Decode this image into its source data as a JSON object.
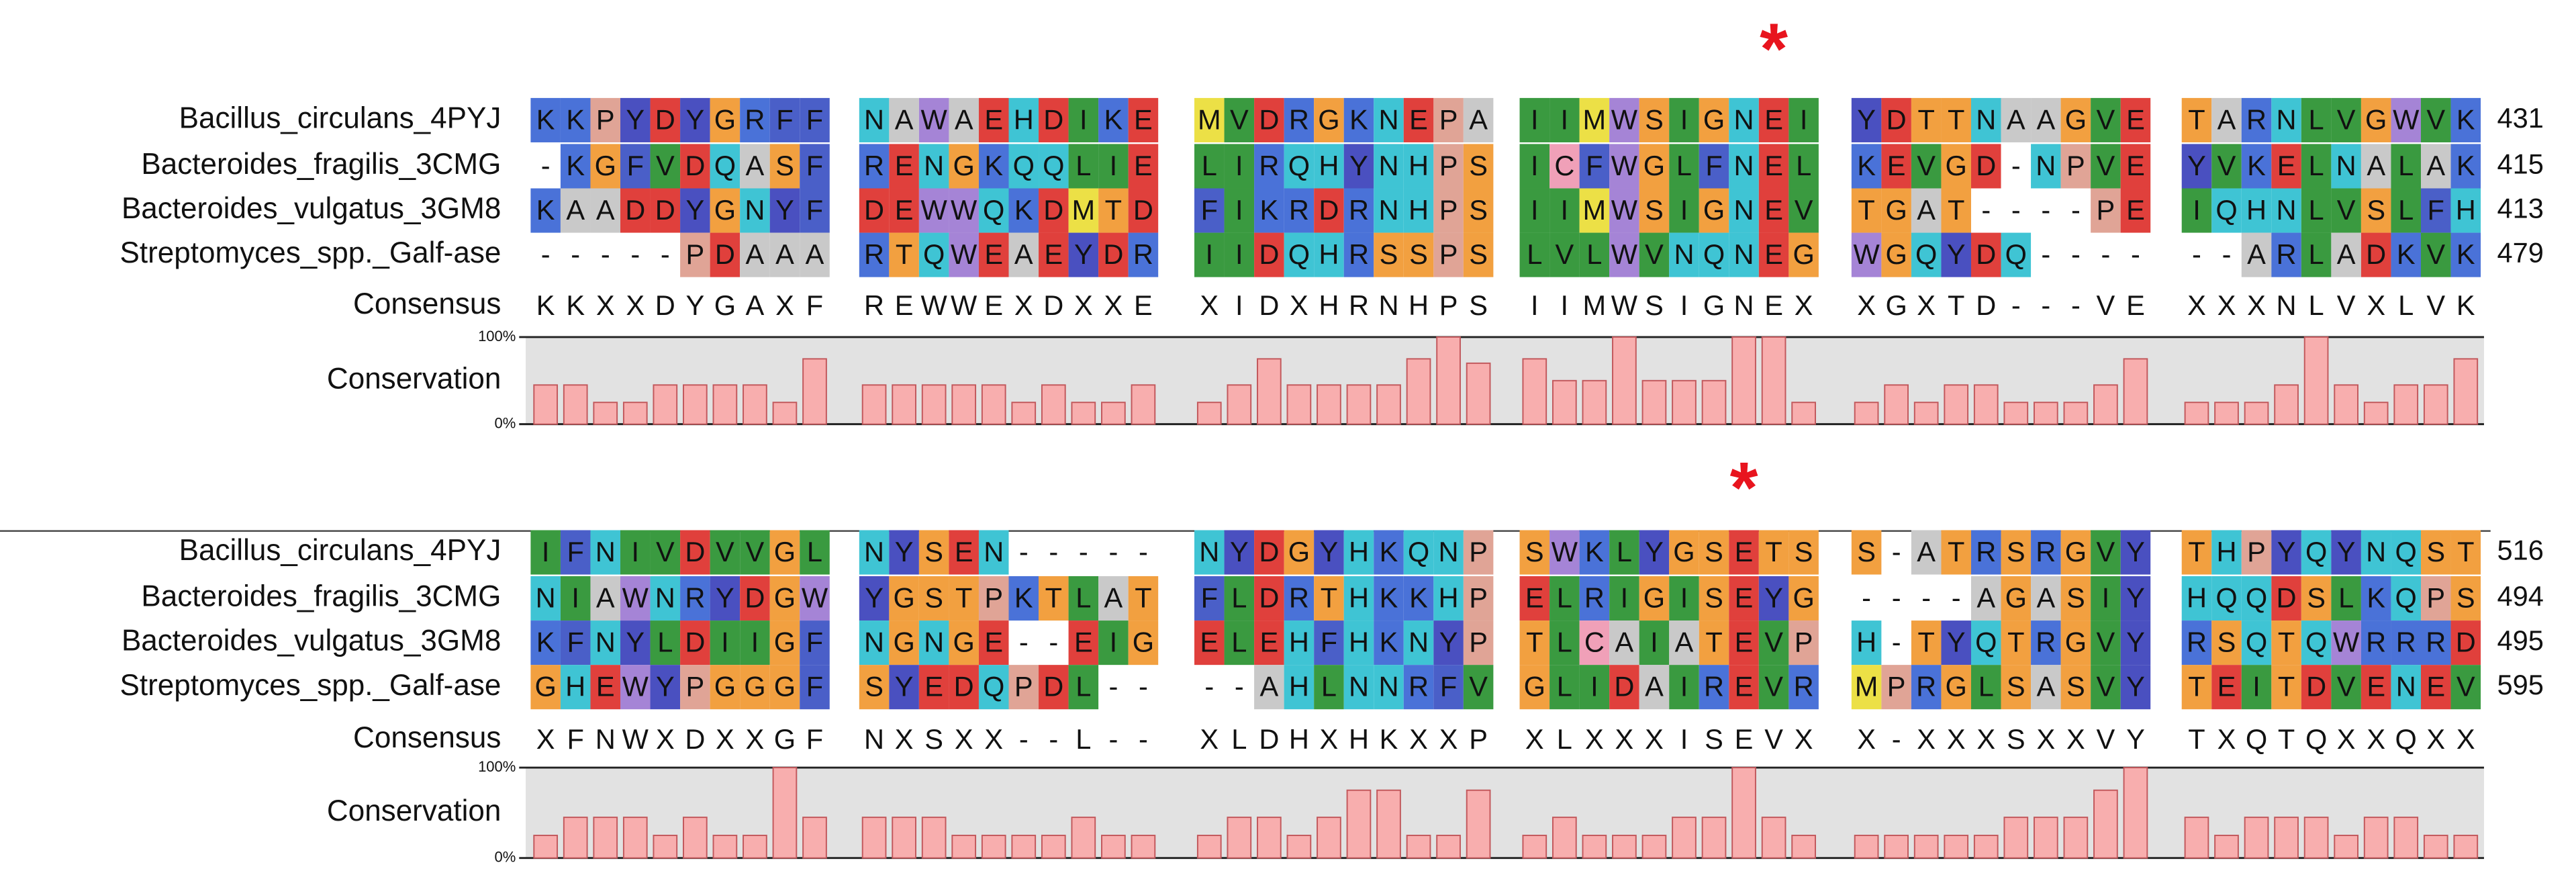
{
  "blocks": [
    {
      "marker": "*",
      "rows": [
        {
          "name": "Bacillus_circulans_4PYJ",
          "groups": [
            "KKPYDYGRFF",
            "NAWAEHDIKE",
            "MVDRGKNEPA",
            "IIMWSIGNEI",
            "YDTTNAAGVE",
            "TARNLVGWVK"
          ],
          "end": 431
        },
        {
          "name": "Bacteroides_fragilis_3CMG",
          "groups": [
            "-KGFVDQASF",
            "RENGKQQLIE",
            "LIRQHYNHPS",
            "ICFWGLFNEL",
            "KEVGD-NPVE",
            "YVKELNALAK"
          ],
          "end": 415
        },
        {
          "name": "Bacteroides_vulgatus_3GM8",
          "groups": [
            "KAADDYGNYF",
            "DEWWQKDMTD",
            "FIKRDRNHPS",
            "IIMWSIGNEV",
            "TGAT----PE",
            "IQHNLVSLFH"
          ],
          "end": 413
        },
        {
          "name": "Streptomyces_spp._Galf-ase",
          "groups": [
            "-----PDAAA",
            "RTQWEAEYDR",
            "IIDQHRSSPS",
            "LVLWVNQNEG",
            "WGQYDQ----",
            "--ARLADKVK"
          ],
          "end": 479
        }
      ],
      "consensus": {
        "label": "Consensus",
        "groups": [
          "KKXXDYGAXF",
          "REWWEXDXXE",
          "XIDXHRNHPS",
          "IIMWSIGNEX",
          "XGXTD---VE",
          "XXXNLVXLVK"
        ]
      },
      "conservation": {
        "label": "Conservation",
        "ylim": [
          0,
          100
        ],
        "yticks": [
          {
            "value": 0,
            "label": "0%"
          },
          {
            "value": 100,
            "label": "100%"
          }
        ],
        "values": [
          45,
          45,
          25,
          25,
          45,
          45,
          45,
          45,
          25,
          75,
          45,
          45,
          45,
          45,
          45,
          25,
          45,
          25,
          25,
          45,
          25,
          45,
          75,
          45,
          45,
          45,
          45,
          75,
          100,
          70,
          75,
          50,
          50,
          100,
          50,
          50,
          50,
          100,
          100,
          25,
          25,
          45,
          25,
          45,
          45,
          25,
          25,
          25,
          45,
          75,
          25,
          25,
          25,
          45,
          100,
          45,
          25,
          45,
          45,
          75
        ]
      }
    },
    {
      "marker": "*",
      "rows": [
        {
          "name": "Bacillus_circulans_4PYJ",
          "groups": [
            "IFNIVDVVGL",
            "NYSEN-----",
            "NYDGYHKQNP",
            "SWKLYGSETS",
            "S-ATRSRGVY",
            "THPYQYNQST"
          ],
          "end": 516
        },
        {
          "name": "Bacteroides_fragilis_3CMG",
          "groups": [
            "NIAWNRYDGW",
            "YGSTPKTLAT",
            "FLDRTHKKHP",
            "ELRIGISEYG",
            "----AGASIY",
            "HQQDSLKQPS"
          ],
          "end": 494
        },
        {
          "name": "Bacteroides_vulgatus_3GM8",
          "groups": [
            "KFNYLDIIGF",
            "NGNGE--EIG",
            "ELEHFHKNYP",
            "TLCAIATEVP",
            "H-TYQTRGVY",
            "RSQTQWRRRD"
          ],
          "end": 495
        },
        {
          "name": "Streptomyces_spp._Galf-ase",
          "groups": [
            "GHEWYPGGGF",
            "SYEDQPDL--",
            "--AHLNNRFV",
            "GLIDAIREVR",
            "MPRGLSASVY",
            "TEITDVENEV"
          ],
          "end": 595
        }
      ],
      "consensus": {
        "label": "Consensus",
        "groups": [
          "XFNWXDXXGF",
          "NXSXX--L--",
          "XLDHXHKXXP",
          "XLXXXISEVX",
          "X-XXXSXXVY",
          "TXQTQXXQXX"
        ]
      },
      "conservation": {
        "label": "Conservation",
        "ylim": [
          0,
          100
        ],
        "yticks": [
          {
            "value": 0,
            "label": "0%"
          },
          {
            "value": 100,
            "label": "100%"
          }
        ],
        "values": [
          25,
          45,
          45,
          45,
          25,
          45,
          25,
          25,
          100,
          45,
          45,
          45,
          45,
          25,
          25,
          25,
          25,
          45,
          25,
          25,
          25,
          45,
          45,
          25,
          45,
          75,
          75,
          25,
          25,
          75,
          25,
          45,
          25,
          25,
          25,
          45,
          45,
          100,
          45,
          25,
          25,
          25,
          25,
          25,
          25,
          45,
          45,
          45,
          75,
          100,
          45,
          25,
          45,
          45,
          45,
          25,
          45,
          45,
          25,
          25
        ]
      }
    }
  ]
}
